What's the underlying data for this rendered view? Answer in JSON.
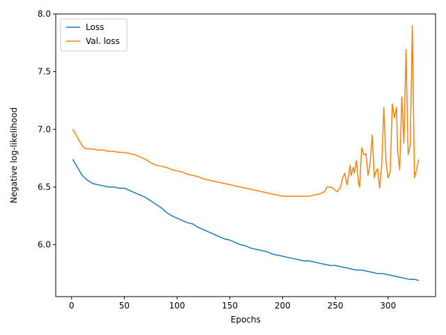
{
  "chart_data": {
    "type": "line",
    "title": "",
    "xlabel": "Epochs",
    "ylabel": "Negative log-likelihood",
    "xlim": [
      -15,
      345
    ],
    "ylim": [
      5.55,
      8.0
    ],
    "xticks": [
      0,
      50,
      100,
      150,
      200,
      250,
      300
    ],
    "xtick_labels": [
      "0",
      "50",
      "100",
      "150",
      "200",
      "250",
      "300"
    ],
    "yticks": [
      6.0,
      6.5,
      7.0,
      7.5,
      8.0
    ],
    "ytick_labels": [
      "6.0",
      "6.5",
      "7.0",
      "7.5",
      "8.0"
    ],
    "grid": false,
    "legend_position": "upper-left",
    "series": [
      {
        "name": "Loss",
        "color": "#1f77b4",
        "x": [
          1,
          5,
          10,
          15,
          20,
          25,
          30,
          35,
          40,
          45,
          50,
          55,
          60,
          65,
          70,
          75,
          80,
          85,
          90,
          95,
          100,
          105,
          110,
          115,
          120,
          125,
          130,
          135,
          140,
          145,
          150,
          155,
          160,
          165,
          170,
          175,
          180,
          185,
          190,
          195,
          200,
          205,
          210,
          215,
          220,
          225,
          230,
          235,
          240,
          245,
          250,
          255,
          260,
          265,
          270,
          275,
          280,
          285,
          290,
          295,
          300,
          305,
          310,
          315,
          320,
          325,
          329
        ],
        "y": [
          6.74,
          6.68,
          6.6,
          6.56,
          6.53,
          6.52,
          6.51,
          6.5,
          6.5,
          6.49,
          6.49,
          6.47,
          6.45,
          6.43,
          6.41,
          6.38,
          6.35,
          6.32,
          6.28,
          6.25,
          6.23,
          6.21,
          6.19,
          6.18,
          6.15,
          6.13,
          6.11,
          6.09,
          6.07,
          6.05,
          6.04,
          6.02,
          6.0,
          5.99,
          5.97,
          5.96,
          5.95,
          5.94,
          5.92,
          5.91,
          5.9,
          5.89,
          5.88,
          5.87,
          5.86,
          5.86,
          5.85,
          5.84,
          5.83,
          5.82,
          5.82,
          5.81,
          5.8,
          5.79,
          5.78,
          5.78,
          5.77,
          5.76,
          5.75,
          5.75,
          5.74,
          5.73,
          5.72,
          5.71,
          5.7,
          5.7,
          5.69
        ]
      },
      {
        "name": "Val. loss",
        "color": "#ff7f0e",
        "x": [
          1,
          3,
          5,
          8,
          10,
          12,
          15,
          20,
          25,
          30,
          35,
          40,
          45,
          50,
          55,
          60,
          65,
          70,
          75,
          80,
          85,
          90,
          95,
          100,
          105,
          110,
          115,
          120,
          125,
          130,
          135,
          140,
          145,
          150,
          155,
          160,
          165,
          170,
          175,
          180,
          185,
          190,
          195,
          200,
          205,
          210,
          215,
          220,
          225,
          230,
          235,
          240,
          242,
          245,
          248,
          250,
          252,
          255,
          257,
          259,
          261,
          262,
          264,
          265,
          267,
          268,
          270,
          272,
          273,
          275,
          277,
          279,
          281,
          283,
          285,
          287,
          288,
          290,
          292,
          294,
          296,
          298,
          300,
          302,
          304,
          306,
          308,
          309,
          311,
          313,
          315,
          317,
          319,
          321,
          323,
          325,
          327,
          329
        ],
        "y": [
          7.0,
          6.97,
          6.94,
          6.89,
          6.86,
          6.84,
          6.83,
          6.83,
          6.82,
          6.82,
          6.81,
          6.81,
          6.8,
          6.8,
          6.79,
          6.78,
          6.76,
          6.74,
          6.71,
          6.69,
          6.68,
          6.67,
          6.65,
          6.64,
          6.63,
          6.61,
          6.6,
          6.59,
          6.57,
          6.56,
          6.55,
          6.54,
          6.53,
          6.52,
          6.51,
          6.5,
          6.49,
          6.48,
          6.47,
          6.46,
          6.45,
          6.44,
          6.43,
          6.42,
          6.42,
          6.42,
          6.42,
          6.42,
          6.42,
          6.43,
          6.44,
          6.46,
          6.5,
          6.5,
          6.49,
          6.47,
          6.46,
          6.5,
          6.58,
          6.62,
          6.52,
          6.56,
          6.69,
          6.6,
          6.67,
          6.62,
          6.73,
          6.53,
          6.5,
          6.84,
          6.78,
          6.79,
          6.6,
          6.71,
          6.95,
          6.58,
          6.62,
          6.66,
          6.49,
          6.7,
          7.19,
          6.72,
          6.58,
          6.63,
          7.22,
          7.1,
          7.19,
          6.82,
          6.65,
          7.28,
          6.88,
          7.69,
          6.78,
          6.87,
          7.9,
          6.58,
          6.65,
          6.74
        ]
      }
    ]
  }
}
